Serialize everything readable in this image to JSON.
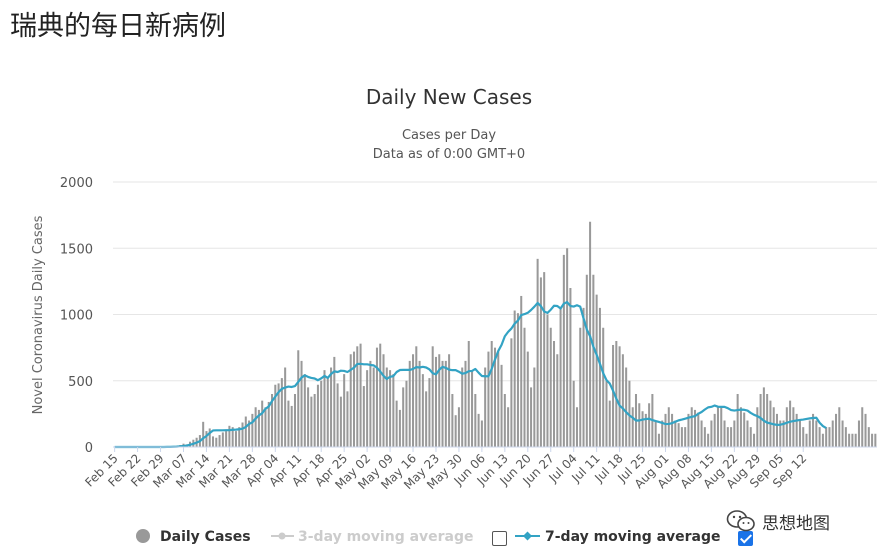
{
  "page": {
    "title": "瑞典的每日新病例"
  },
  "watermark": {
    "text": "思想地图"
  },
  "colors": {
    "bar": "#999999",
    "line": "#33a3c4",
    "grid": "#e6e6e6",
    "disabled": "#cccccc"
  },
  "chart_data": {
    "type": "bar",
    "title": "Daily New Cases",
    "subtitle": [
      "Cases per Day",
      "Data as of 0:00 GMT+0"
    ],
    "ylabel": "Novel Coronavirus Daily Cases",
    "xlabel": "",
    "ylim": [
      0,
      2000
    ],
    "yticks": [
      "0",
      "500",
      "1000",
      "1500",
      "2000"
    ],
    "xticks": [
      "Feb 15",
      "Feb 22",
      "Feb 29",
      "Mar 07",
      "Mar 14",
      "Mar 21",
      "Mar 28",
      "Apr 04",
      "Apr 11",
      "Apr 18",
      "Apr 25",
      "May 02",
      "May 09",
      "May 16",
      "May 23",
      "May 30",
      "Jun 06",
      "Jun 13",
      "Jun 20",
      "Jun 27",
      "Jul 04",
      "Jul 11",
      "Jul 18",
      "Jul 25",
      "Aug 01",
      "Aug 08",
      "Aug 15",
      "Aug 22",
      "Aug 29",
      "Sep 05",
      "Sep 12"
    ],
    "start_date": "Feb 15",
    "legend": [
      {
        "label": "Daily Cases",
        "enabled": true
      },
      {
        "label": "3-day moving average",
        "enabled": false
      },
      {
        "label": "7-day moving average",
        "enabled": true
      }
    ],
    "series": [
      {
        "name": "Daily Cases",
        "values": [
          0,
          0,
          0,
          0,
          0,
          0,
          0,
          0,
          0,
          0,
          0,
          0,
          0,
          0,
          1,
          2,
          3,
          5,
          5,
          10,
          15,
          25,
          20,
          40,
          55,
          70,
          90,
          190,
          120,
          140,
          80,
          70,
          90,
          110,
          120,
          160,
          150,
          120,
          150,
          185,
          230,
          200,
          250,
          300,
          280,
          350,
          300,
          340,
          400,
          470,
          480,
          520,
          600,
          350,
          310,
          400,
          730,
          650,
          550,
          450,
          380,
          400,
          470,
          500,
          580,
          530,
          600,
          680,
          480,
          380,
          550,
          420,
          700,
          720,
          760,
          780,
          460,
          580,
          650,
          600,
          750,
          780,
          700,
          600,
          580,
          550,
          350,
          280,
          450,
          500,
          650,
          700,
          760,
          650,
          550,
          420,
          520,
          760,
          680,
          700,
          650,
          650,
          700,
          400,
          240,
          300,
          600,
          650,
          800,
          580,
          400,
          250,
          200,
          600,
          720,
          800,
          750,
          720,
          620,
          400,
          300,
          820,
          1030,
          1010,
          1140,
          900,
          720,
          450,
          600,
          1420,
          1280,
          1320,
          1000,
          900,
          800,
          700,
          1050,
          1450,
          1500,
          1200,
          500,
          300,
          900,
          1050,
          1300,
          1700,
          1300,
          1150,
          1050,
          900,
          500,
          350,
          770,
          800,
          760,
          700,
          600,
          500,
          300,
          400,
          330,
          270,
          250,
          330,
          400,
          200,
          100,
          200,
          250,
          300,
          250,
          200,
          180,
          150,
          150,
          250,
          300,
          280,
          260,
          200,
          150,
          100,
          200,
          250,
          300,
          300,
          200,
          150,
          150,
          200,
          400,
          300,
          260,
          200,
          150,
          100,
          300,
          400,
          450,
          400,
          350,
          300,
          250,
          200,
          200,
          300,
          350,
          300,
          250,
          200,
          150,
          100,
          200,
          250,
          200,
          150,
          100,
          150,
          150,
          200,
          250,
          300,
          200,
          150,
          100,
          100,
          100,
          200,
          300,
          250,
          150,
          100,
          100
        ]
      },
      {
        "name": "7-day moving average",
        "values": [
          0,
          0,
          0,
          0,
          0,
          0,
          0,
          0,
          0,
          0,
          0,
          0,
          0,
          0,
          0,
          0,
          1,
          1,
          2,
          3,
          5,
          8,
          11,
          17,
          24,
          33,
          44,
          66,
          83,
          106,
          125,
          126,
          126,
          126,
          127,
          127,
          130,
          131,
          134,
          138,
          151,
          174,
          186,
          215,
          238,
          255,
          288,
          306,
          347,
          380,
          414,
          439,
          449,
          456,
          453,
          460,
          491,
          524,
          541,
          529,
          521,
          517,
          504,
          518,
          537,
          521,
          551,
          571,
          566,
          576,
          574,
          566,
          582,
          599,
          627,
          628,
          624,
          624,
          619,
          616,
          598,
          570,
          537,
          513,
          530,
          535,
          566,
          581,
          582,
          582,
          582,
          589,
          603,
          600,
          605,
          600,
          586,
          557,
          548,
          583,
          605,
          597,
          584,
          580,
          580,
          568,
          553,
          558,
          572,
          574,
          589,
          561,
          536,
          534,
          534,
          590,
          660,
          725,
          771,
          836,
          869,
          894,
          931,
          954,
          996,
          1003,
          1013,
          1034,
          1059,
          1087,
          1063,
          1023,
          1012,
          1036,
          1066,
          1064,
          1045,
          1082,
          1093,
          1064,
          1060,
          1070,
          1059,
          971,
          887,
          836,
          757,
          696,
          628,
          557,
          505,
          479,
          425,
          365,
          313,
          291,
          263,
          239,
          221,
          200,
          200,
          207,
          211,
          213,
          203,
          196,
          189,
          182,
          173,
          174,
          180,
          191,
          201,
          207,
          214,
          221,
          228,
          233,
          251,
          264,
          283,
          299,
          303,
          313,
          304,
          303,
          303,
          293,
          279,
          275,
          279,
          282,
          281,
          275,
          257,
          243,
          233,
          219,
          198,
          184,
          178,
          171,
          167,
          168,
          174,
          183,
          191,
          196,
          200,
          204,
          207,
          212,
          216,
          219,
          221,
          183,
          158,
          143
        ]
      }
    ]
  }
}
